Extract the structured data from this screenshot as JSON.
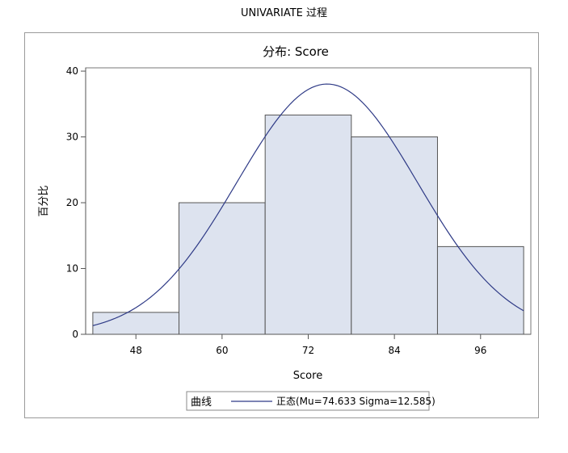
{
  "procedure_title": "UNIVARIATE 过程",
  "chart_data": {
    "type": "bar",
    "title": "分布: Score",
    "xlabel": "Score",
    "ylabel": "百分比",
    "categories": [
      "48",
      "60",
      "72",
      "84",
      "96"
    ],
    "bins": [
      {
        "midpoint": 48,
        "lower": 42,
        "upper": 54,
        "percent": 3.33
      },
      {
        "midpoint": 60,
        "lower": 54,
        "upper": 66,
        "percent": 20.0
      },
      {
        "midpoint": 72,
        "lower": 66,
        "upper": 78,
        "percent": 33.33
      },
      {
        "midpoint": 84,
        "lower": 78,
        "upper": 90,
        "percent": 30.0
      },
      {
        "midpoint": 96,
        "lower": 90,
        "upper": 102,
        "percent": 13.33
      }
    ],
    "x_ticks": [
      48,
      60,
      72,
      84,
      96
    ],
    "y_ticks": [
      0,
      10,
      20,
      30,
      40
    ],
    "xlim": [
      41,
      103
    ],
    "ylim": [
      0,
      40.5
    ],
    "grid": false,
    "fitted_curve": {
      "type": "normal",
      "mu": 74.633,
      "sigma": 12.585,
      "bin_width": 12,
      "color": "#2e3a86"
    },
    "legend": {
      "position": "bottom",
      "title": "曲线",
      "entries": [
        {
          "label": "正态(Mu=74.633 Sigma=12.585)",
          "color": "#2e3a86"
        }
      ]
    },
    "colors": {
      "bar_fill": "#dde3ef",
      "bar_stroke": "#555555",
      "curve": "#2e3a86",
      "axis": "#555555"
    }
  }
}
